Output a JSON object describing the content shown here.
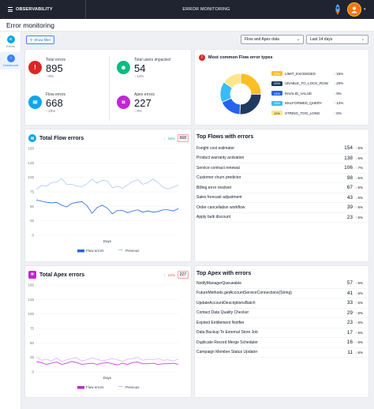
{
  "topbar": {
    "menu_label": "OBSERVABILITY",
    "title": "ERROR MONITORING"
  },
  "page": {
    "title": "Error monitoring"
  },
  "rail": [
    {
      "label": "Errors"
    },
    {
      "label": "Dashboard"
    }
  ],
  "filters": {
    "show_filter_label": "Show filter",
    "data_select": "Flow and Apex data",
    "range_select": "Last 14 days"
  },
  "kpis": {
    "total_errors": {
      "label": "Total errors",
      "value": "895",
      "delta": "9%"
    },
    "users_impacted": {
      "label": "Total users impacted",
      "value": "54",
      "delta": "14%"
    },
    "flow_errors": {
      "label": "Flow errors",
      "value": "668",
      "delta": "23%"
    },
    "apex_errors": {
      "label": "Apex errors",
      "value": "227",
      "delta": "9%"
    }
  },
  "flow_types": {
    "title": "Most common Flow error types",
    "items": [
      {
        "pct": "20%",
        "name": "LIMIT_EXCEEDED",
        "delta": "15%",
        "dir": "up",
        "color": "#fbbf24"
      },
      {
        "pct": "20%",
        "name": "UNABLE_TO_LOCK_ROW",
        "delta": "20%",
        "dir": "down",
        "color": "#1e3a5f"
      },
      {
        "pct": "14%",
        "name": "INVALID_VALUE",
        "delta": "9%",
        "dir": "down",
        "color": "#2563eb"
      },
      {
        "pct": "13%",
        "name": "MALFORMED_QUERY",
        "delta": "12%",
        "dir": "up",
        "color": "#38bdf8"
      },
      {
        "pct": "12%",
        "name": "STRING_TOO_LONG",
        "delta": "6%",
        "dir": "up",
        "color": "#fde68a"
      }
    ]
  },
  "flow_chart": {
    "title": "Total Flow errors",
    "delta": "16%",
    "total": "668",
    "xlabel": "Days",
    "legend": [
      "Flow errors",
      "Previous"
    ]
  },
  "apex_chart": {
    "title": "Total Apex errors",
    "delta": "12%",
    "total": "227",
    "xlabel": "Days",
    "legend": [
      "Flow errors",
      "Previous"
    ]
  },
  "top_flows": {
    "title": "Top Flows with errors",
    "rows": [
      {
        "name": "Freight cost estimator",
        "count": "154",
        "delta": "6%",
        "dir": "up"
      },
      {
        "name": "Product warranty activation",
        "count": "138",
        "delta": "5%",
        "dir": "down"
      },
      {
        "name": "Service contract renewal",
        "count": "106",
        "delta": "7%",
        "dir": "up"
      },
      {
        "name": "Customer churn predictor",
        "count": "98",
        "delta": "5%",
        "dir": "down"
      },
      {
        "name": "Billing error resolver",
        "count": "67",
        "delta": "6%",
        "dir": "up"
      },
      {
        "name": "Sales forecast adjustment",
        "count": "43",
        "delta": "5%",
        "dir": "down"
      },
      {
        "name": "Order cancellation workflow",
        "count": "39",
        "delta": "6%",
        "dir": "up"
      },
      {
        "name": "Apply bulk discount",
        "count": "23",
        "delta": "6%",
        "dir": "up"
      }
    ]
  },
  "top_apex": {
    "title": "Top Apex with errors",
    "rows": [
      {
        "name": "NotifyManagerQueueable",
        "count": "57",
        "delta": "5%",
        "dir": "up"
      },
      {
        "name": "FutureMethods.getAccountServiceConnections(String)",
        "count": "41",
        "delta": "6%",
        "dir": "down"
      },
      {
        "name": "UpdateAccountDescriptionsBatch",
        "count": "33",
        "delta": "6%",
        "dir": "up"
      },
      {
        "name": "Contact Data Quality Checker",
        "count": "29",
        "delta": "6%",
        "dir": "up"
      },
      {
        "name": "Expired Entitlement Notifier",
        "count": "23",
        "delta": "6%",
        "dir": "up"
      },
      {
        "name": "Data Backup To External Store Job",
        "count": "17",
        "delta": "6%",
        "dir": "up"
      },
      {
        "name": "Duplicate Record Merge Scheduler",
        "count": "16",
        "delta": "6%",
        "dir": "up"
      },
      {
        "name": "Campaign Member Status Updater",
        "count": "11",
        "delta": "6%",
        "dir": "up"
      }
    ]
  },
  "colors": {
    "flow": "#2563eb",
    "apex": "#c026d3",
    "previous": "#a5c8f0",
    "apex_previous": "#d8b4fe"
  },
  "chart_data": [
    {
      "type": "line",
      "title": "Total Flow errors",
      "xlabel": "Days",
      "ylabel": "",
      "ylim": [
        0,
        150
      ],
      "yticks": [
        0,
        25,
        50,
        75,
        100,
        125,
        150
      ],
      "x": [
        1,
        2,
        3,
        4,
        5,
        6,
        7,
        8,
        9,
        10,
        11,
        12,
        13,
        14,
        15,
        16,
        17,
        18,
        19,
        20,
        21,
        22,
        23,
        24,
        25,
        26,
        27,
        28,
        29
      ],
      "series": [
        {
          "name": "Flow errors",
          "values": [
            61,
            59,
            57,
            56,
            57,
            52,
            49,
            55,
            57,
            58,
            51,
            38,
            48,
            52,
            47,
            37,
            43,
            43,
            39,
            42,
            44,
            40,
            42,
            40,
            41,
            44,
            44,
            42,
            46
          ]
        },
        {
          "name": "Previous",
          "values": [
            79,
            86,
            85,
            91,
            92,
            98,
            88,
            88,
            85,
            84,
            89,
            97,
            90,
            95,
            94,
            82,
            85,
            81,
            87,
            93,
            96,
            88,
            91,
            97,
            91,
            83,
            80,
            83,
            87
          ]
        }
      ]
    },
    {
      "type": "line",
      "title": "Total Apex errors",
      "xlabel": "Days",
      "ylabel": "",
      "ylim": [
        0,
        150
      ],
      "yticks": [
        0,
        25,
        50,
        75,
        100,
        125,
        150
      ],
      "x": [
        1,
        2,
        3,
        4,
        5,
        6,
        7,
        8,
        9,
        10,
        11,
        12,
        13,
        14,
        15,
        16,
        17,
        18,
        19,
        20,
        21,
        22,
        23,
        24,
        25,
        26,
        27,
        28,
        29
      ],
      "series": [
        {
          "name": "Flow errors",
          "values": [
            18,
            16,
            13,
            15,
            17,
            13,
            15,
            18,
            16,
            13,
            14,
            15,
            13,
            15,
            16,
            14,
            12,
            15,
            13,
            16,
            17,
            14,
            14,
            15,
            13,
            14,
            14,
            15,
            13
          ]
        },
        {
          "name": "Previous",
          "values": [
            26,
            20,
            22,
            19,
            24,
            18,
            21,
            23,
            24,
            19,
            21,
            24,
            22,
            19,
            21,
            23,
            21,
            18,
            22,
            23,
            25,
            20,
            22,
            21,
            23,
            20,
            21,
            19,
            22
          ]
        }
      ]
    }
  ]
}
